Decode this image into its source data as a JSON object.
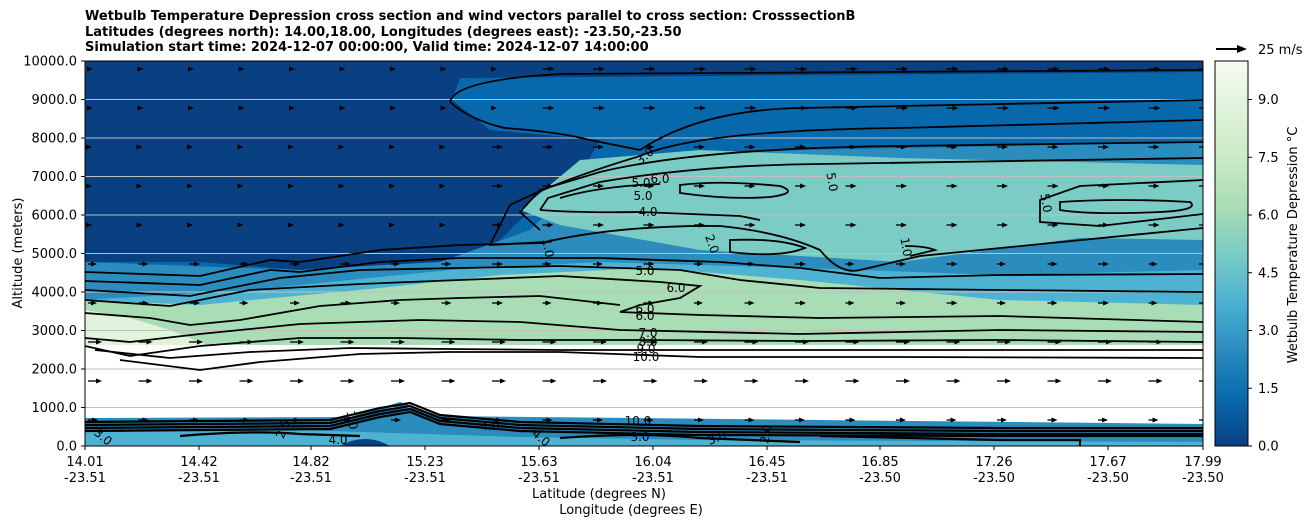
{
  "title_lines": [
    "Wetbulb Temperature Depression cross section and wind vectors parallel to cross section: CrosssectionB",
    "Latitudes (degrees north): 14.00,18.00, Longitudes (degrees east): -23.50,-23.50",
    "Simulation start time: 2024-12-07 00:00:00, Valid time: 2024-12-07 14:00:00"
  ],
  "quiver_key": "25 m/s",
  "chart_data": {
    "type": "heatmap",
    "ylabel": "Altitude (meters)",
    "xlabel_line1": "Latitude (degrees N)",
    "xlabel_line2": "Longitude (degrees E)",
    "y_ticks": [
      "0.0",
      "1000.0",
      "2000.0",
      "3000.0",
      "4000.0",
      "5000.0",
      "6000.0",
      "7000.0",
      "8000.0",
      "9000.0",
      "10000.0"
    ],
    "ylim": [
      0,
      10000
    ],
    "x_ticks": [
      {
        "lat": "14.01",
        "lon": "-23.51"
      },
      {
        "lat": "14.42",
        "lon": "-23.51"
      },
      {
        "lat": "14.82",
        "lon": "-23.51"
      },
      {
        "lat": "15.23",
        "lon": "-23.51"
      },
      {
        "lat": "15.63",
        "lon": "-23.51"
      },
      {
        "lat": "16.04",
        "lon": "-23.51"
      },
      {
        "lat": "16.45",
        "lon": "-23.51"
      },
      {
        "lat": "16.85",
        "lon": "-23.50"
      },
      {
        "lat": "17.26",
        "lon": "-23.50"
      },
      {
        "lat": "17.67",
        "lon": "-23.50"
      },
      {
        "lat": "17.99",
        "lon": "-23.50"
      }
    ],
    "colorbar": {
      "label": "Wetbulb Temperature Depression °C",
      "ticks": [
        "0.0",
        "1.5",
        "3.0",
        "4.5",
        "6.0",
        "7.5",
        "9.0"
      ],
      "range": [
        0,
        10
      ],
      "colormap": [
        "#084081",
        "#0868ac",
        "#2b8cbe",
        "#4eb3d3",
        "#7bccc4",
        "#a8ddb5",
        "#ccebc5",
        "#e0f3db",
        "#f7fcf0"
      ]
    },
    "contour_labels": [
      "3.0",
      "5.0",
      "5.0",
      "6.0",
      "4.0",
      "5.0",
      "5.0",
      "1.0",
      "2.0",
      "1.0",
      "5.0",
      "6.0",
      "6.0",
      "6.0",
      "7.0",
      "8.0",
      "9.0",
      "10.0",
      "10.0",
      "3.0",
      "2.0",
      "4.0",
      "4.0",
      "3.0",
      "4.0",
      "3.0",
      "2.0",
      "1.0"
    ]
  }
}
